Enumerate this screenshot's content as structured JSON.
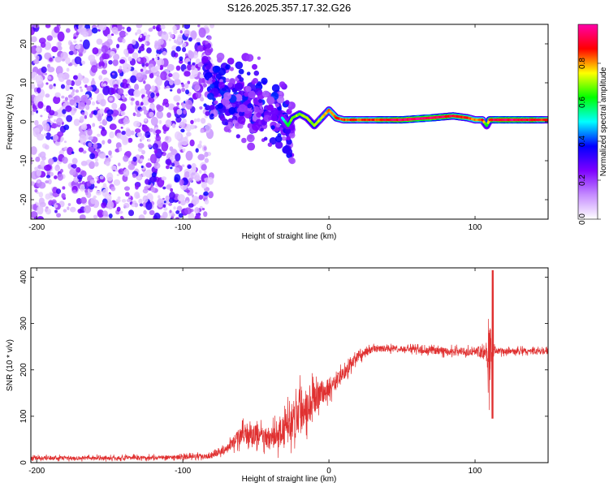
{
  "title": "S126.2025.357.17.32.G26",
  "chart_data": [
    {
      "type": "heatmap",
      "name": "spectrogram",
      "xlabel": "Height of straight line (km)",
      "ylabel": "Frequency (Hz)",
      "xlim": [
        -204,
        150
      ],
      "ylim": [
        -25,
        25
      ],
      "xticks": [
        -200,
        -100,
        0,
        100
      ],
      "yticks": [
        -20,
        -10,
        0,
        10,
        20
      ],
      "colorbar": {
        "label": "Normalized spectral amplitude",
        "range": [
          0,
          1
        ],
        "ticks": [
          0.0,
          0.2,
          0.4,
          0.6,
          0.8
        ],
        "tick_labels": [
          "0.0",
          "0.2",
          "0.4",
          "0.6",
          "0.8"
        ],
        "colors": [
          "#ffffff",
          "#c58cff",
          "#7d00ff",
          "#0000ff",
          "#00ffff",
          "#00ff00",
          "#ffff00",
          "#ff0000",
          "#ff00aa"
        ]
      },
      "ridge": {
        "x": [
          -83,
          -78,
          -70,
          -60,
          -50,
          -40,
          -32,
          -28,
          -25,
          -20,
          -15,
          -10,
          -5,
          0,
          5,
          10,
          30,
          50,
          70,
          85,
          95,
          100,
          105,
          108,
          110,
          120,
          140,
          150
        ],
        "y": [
          10,
          9,
          6,
          5,
          4,
          3,
          1,
          -1,
          1,
          2,
          1,
          -1,
          1,
          3,
          1,
          0.5,
          0.5,
          0.5,
          1,
          1.5,
          1,
          0.5,
          0.5,
          -1,
          0.5,
          0.5,
          0.5,
          0.5
        ],
        "amplitude": [
          0.4,
          0.4,
          0.4,
          0.4,
          0.35,
          0.4,
          0.5,
          0.6,
          0.7,
          0.7,
          0.7,
          0.7,
          0.75,
          0.8,
          0.85,
          0.85,
          0.85,
          0.95,
          0.95,
          0.9,
          0.85,
          0.8,
          0.85,
          0.6,
          0.9,
          0.95,
          0.9,
          0.85
        ]
      },
      "noise_region": {
        "x_range": [
          -204,
          -80
        ],
        "freq_range": [
          -25,
          25
        ],
        "amplitude_range": [
          0.05,
          0.25
        ]
      }
    },
    {
      "type": "line",
      "name": "snr",
      "xlabel": "Height of straight line (km)",
      "ylabel": "SNR (10 * v/v)",
      "xlim": [
        -204,
        150
      ],
      "ylim": [
        0,
        420
      ],
      "xticks": [
        -200,
        -100,
        0,
        100
      ],
      "yticks": [
        0,
        100,
        200,
        300,
        400
      ],
      "color": "#e03030",
      "envelope": {
        "x": [
          -204,
          -150,
          -100,
          -80,
          -70,
          -60,
          -50,
          -40,
          -30,
          -20,
          -10,
          0,
          10,
          20,
          30,
          50,
          80,
          100,
          108,
          110,
          112,
          115,
          120,
          150
        ],
        "mean": [
          10,
          10,
          12,
          15,
          30,
          60,
          60,
          50,
          70,
          110,
          140,
          160,
          190,
          230,
          245,
          245,
          240,
          240,
          240,
          220,
          240,
          240,
          240,
          240
        ],
        "spread": [
          8,
          8,
          8,
          10,
          15,
          35,
          40,
          40,
          60,
          90,
          60,
          40,
          25,
          20,
          12,
          12,
          15,
          15,
          40,
          150,
          30,
          12,
          12,
          12
        ]
      },
      "spike": {
        "x": 112,
        "max": 415,
        "min": 95
      }
    }
  ]
}
